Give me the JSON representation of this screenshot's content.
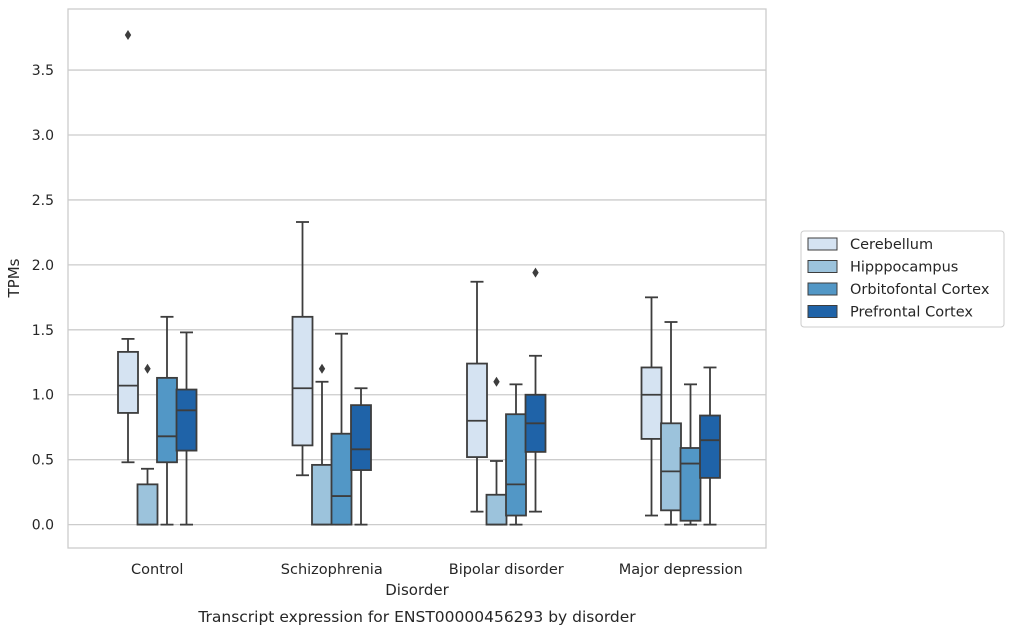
{
  "chart_data": {
    "type": "box",
    "title": "",
    "caption": "Transcript expression for ENST00000456293 by disorder",
    "xlabel": "Disorder",
    "ylabel": "TPMs",
    "ylim": [
      -0.18,
      3.97
    ],
    "yticks": [
      "0.0",
      "0.5",
      "1.0",
      "1.5",
      "2.0",
      "2.5",
      "3.0",
      "3.5"
    ],
    "grid": "horizontal",
    "legend_position": "right",
    "categories": [
      "Control",
      "Schizophrenia",
      "Bipolar disorder",
      "Major depression"
    ],
    "series": [
      {
        "name": "Cerebellum",
        "color": "#d5e3f2",
        "boxes": [
          {
            "whisker_low": 0.48,
            "q1": 0.86,
            "median": 1.07,
            "q3": 1.33,
            "whisker_high": 1.43,
            "outliers": [
              3.77
            ]
          },
          {
            "whisker_low": 0.38,
            "q1": 0.61,
            "median": 1.05,
            "q3": 1.6,
            "whisker_high": 2.33,
            "outliers": []
          },
          {
            "whisker_low": 0.1,
            "q1": 0.52,
            "median": 0.8,
            "q3": 1.24,
            "whisker_high": 1.87,
            "outliers": []
          },
          {
            "whisker_low": 0.07,
            "q1": 0.66,
            "median": 1.0,
            "q3": 1.21,
            "whisker_high": 1.75,
            "outliers": []
          }
        ]
      },
      {
        "name": "Hipppocampus",
        "color": "#9cc3dc",
        "boxes": [
          {
            "whisker_low": 0.0,
            "q1": 0.0,
            "median": 0.0,
            "q3": 0.31,
            "whisker_high": 0.43,
            "outliers": [
              1.2
            ]
          },
          {
            "whisker_low": 0.0,
            "q1": 0.0,
            "median": 0.0,
            "q3": 0.46,
            "whisker_high": 1.1,
            "outliers": [
              1.2
            ]
          },
          {
            "whisker_low": 0.0,
            "q1": 0.0,
            "median": 0.0,
            "q3": 0.23,
            "whisker_high": 0.49,
            "outliers": [
              1.1
            ]
          },
          {
            "whisker_low": 0.0,
            "q1": 0.11,
            "median": 0.41,
            "q3": 0.78,
            "whisker_high": 1.56,
            "outliers": []
          }
        ]
      },
      {
        "name": "Orbitofontal Cortex",
        "color": "#5297c6",
        "boxes": [
          {
            "whisker_low": 0.0,
            "q1": 0.48,
            "median": 0.68,
            "q3": 1.13,
            "whisker_high": 1.6,
            "outliers": []
          },
          {
            "whisker_low": 0.0,
            "q1": 0.0,
            "median": 0.22,
            "q3": 0.7,
            "whisker_high": 1.47,
            "outliers": []
          },
          {
            "whisker_low": 0.0,
            "q1": 0.07,
            "median": 0.31,
            "q3": 0.85,
            "whisker_high": 1.08,
            "outliers": []
          },
          {
            "whisker_low": 0.0,
            "q1": 0.03,
            "median": 0.47,
            "q3": 0.59,
            "whisker_high": 1.08,
            "outliers": []
          }
        ]
      },
      {
        "name": "Prefrontal Cortex",
        "color": "#1f63a8",
        "boxes": [
          {
            "whisker_low": 0.0,
            "q1": 0.57,
            "median": 0.88,
            "q3": 1.04,
            "whisker_high": 1.48,
            "outliers": []
          },
          {
            "whisker_low": 0.0,
            "q1": 0.42,
            "median": 0.58,
            "q3": 0.92,
            "whisker_high": 1.05,
            "outliers": []
          },
          {
            "whisker_low": 0.1,
            "q1": 0.56,
            "median": 0.78,
            "q3": 1.0,
            "whisker_high": 1.3,
            "outliers": [
              1.94
            ]
          },
          {
            "whisker_low": 0.0,
            "q1": 0.36,
            "median": 0.65,
            "q3": 0.84,
            "whisker_high": 1.21,
            "outliers": []
          }
        ]
      }
    ]
  }
}
